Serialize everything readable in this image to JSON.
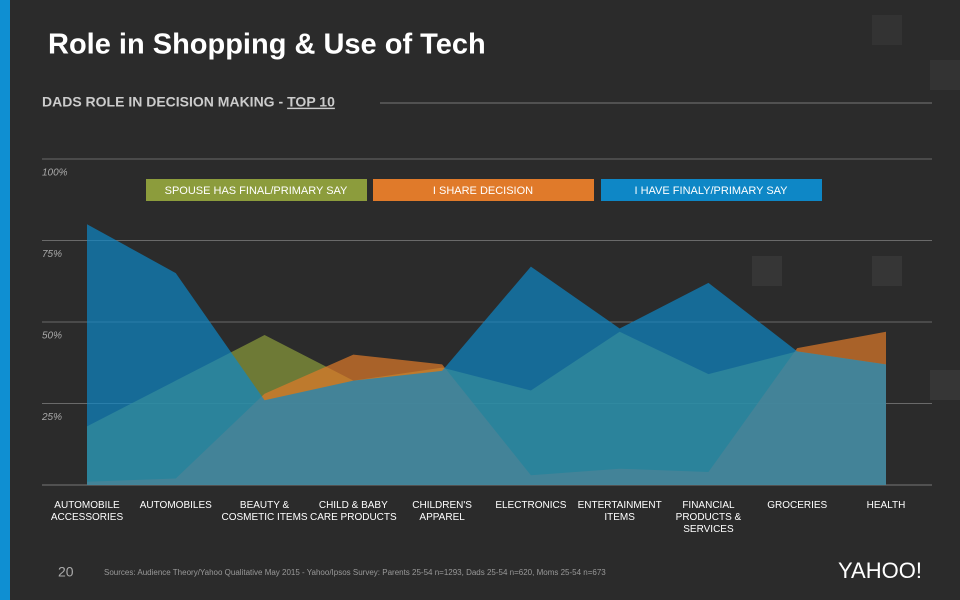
{
  "chart_data": {
    "type": "area",
    "title": "Role in Shopping & Use of Tech",
    "subtitle": "DADS ROLE IN DECISION MAKING -",
    "subtitle_emphasis": "TOP 10",
    "categories": [
      "AUTOMOBILE ACCESSORIES",
      "AUTOMOBILES",
      "BEAUTY & COSMETIC ITEMS",
      "CHILD & BABY CARE PRODUCTS",
      "CHILDREN'S APPAREL",
      "ELECTRONICS",
      "ENTERTAINMENT ITEMS",
      "FINANCIAL PRODUCTS & SERVICES",
      "GROCERIES",
      "HEALTH"
    ],
    "series": [
      {
        "name": "SPOUSE HAS FINAL/PRIMARY SAY",
        "color": "#8c9c3c",
        "values": [
          18,
          32,
          46,
          32,
          36,
          29,
          47,
          34,
          41,
          37
        ]
      },
      {
        "name": "I SHARE DECISION",
        "color": "#e07a2a",
        "values": [
          1,
          2,
          28,
          40,
          37,
          3,
          5,
          4,
          42,
          47
        ]
      },
      {
        "name": "I HAVE FINALY/PRIMARY SAY",
        "color": "#0e87c6",
        "values": [
          80,
          65,
          26,
          32,
          35,
          67,
          48,
          62,
          41,
          37
        ]
      }
    ],
    "ylim": [
      0,
      100
    ],
    "yticks": [
      {
        "value": 25,
        "label": "25%"
      },
      {
        "value": 50,
        "label": "50%"
      },
      {
        "value": 75,
        "label": "75%"
      },
      {
        "value": 100,
        "label": "100%"
      }
    ],
    "grid": true
  },
  "footer": {
    "page_number": "20",
    "source": "Sources: Audience Theory/Yahoo Qualitative May 2015 - Yahoo/Ipsos Survey: Parents 25-54 n=1293, Dads 25-54 n=620, Moms 25-54 n=673",
    "logo": "YAHOO!"
  }
}
